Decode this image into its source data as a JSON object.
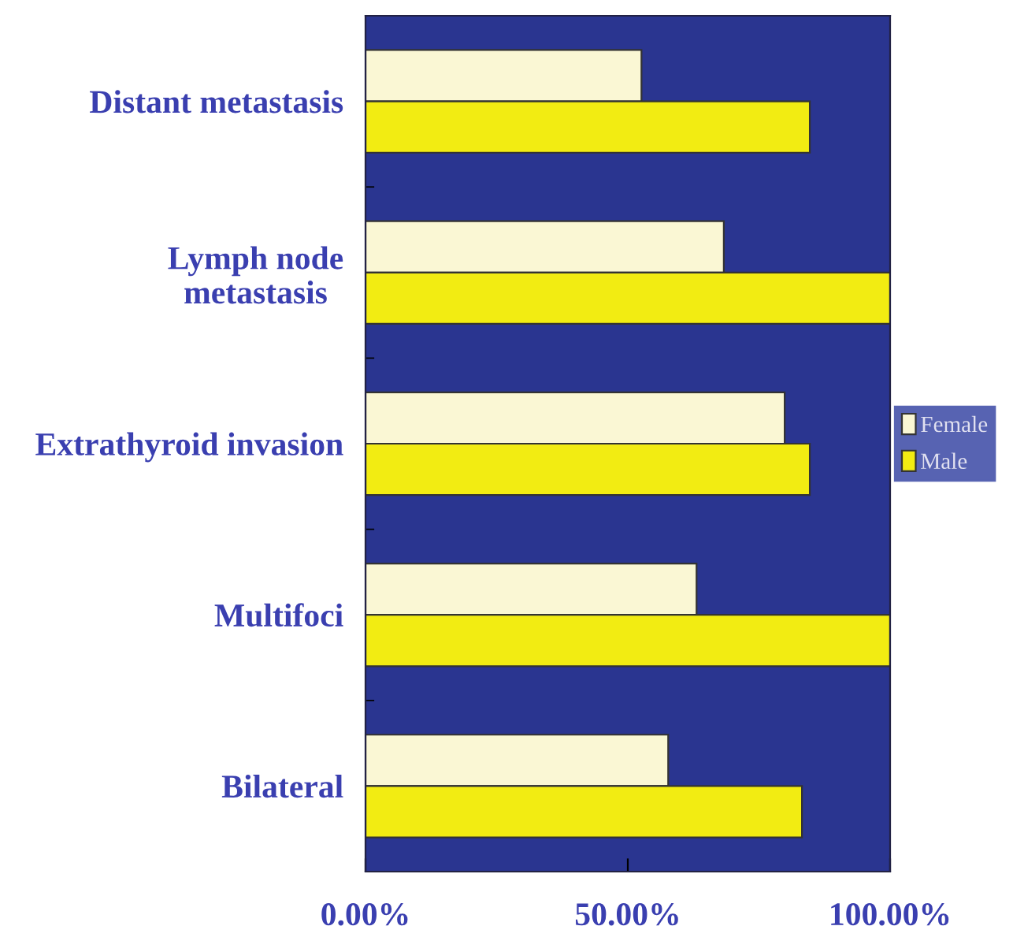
{
  "chart_data": {
    "type": "bar",
    "orientation": "horizontal",
    "categories": [
      "Distant metastasis",
      "Lymph node\nmetastasis",
      "Extrathyroid invasion",
      "Multifoci",
      "Bilateral"
    ],
    "series": [
      {
        "name": "Female",
        "color": "#faf7d4",
        "values": [
          52.6,
          68.3,
          79.9,
          63.1,
          57.7
        ]
      },
      {
        "name": "Male",
        "color": "#f2ec12",
        "values": [
          84.7,
          100,
          84.7,
          100,
          83.2
        ]
      }
    ],
    "xlim": [
      0,
      100
    ],
    "xticks": [
      {
        "value": 0,
        "label": "0.00%"
      },
      {
        "value": 50,
        "label": "50.00%"
      },
      {
        "value": 100,
        "label": "100.00%"
      }
    ],
    "grid": false,
    "legend": "right"
  }
}
